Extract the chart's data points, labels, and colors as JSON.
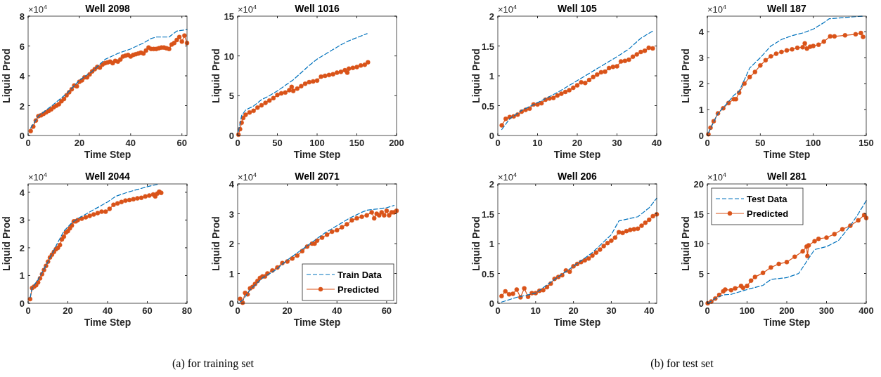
{
  "chart_data": [
    {
      "type": "line",
      "title": "Well 2098",
      "xlabel": "Time Step",
      "ylabel": "Liquid Prod",
      "xlim": [
        0,
        62
      ],
      "ylim": [
        0,
        8
      ],
      "xticks": [
        0,
        20,
        40,
        60
      ],
      "yticks": [
        0,
        2,
        4,
        6,
        8
      ],
      "annotations": [
        "×10$^{4}$"
      ],
      "series": [
        {
          "color": "#0072bd",
          "line_style": "dashed",
          "marker": "none",
          "x": [
            1,
            4,
            10,
            15,
            20,
            25,
            30,
            35,
            40,
            45,
            48,
            50,
            55,
            58,
            62
          ],
          "values": [
            0.5,
            1.3,
            2.1,
            2.8,
            3.7,
            4.3,
            5.1,
            5.5,
            5.8,
            6.2,
            6.5,
            6.6,
            6.6,
            7.0,
            7.1
          ]
        },
        {
          "color": "#d95319",
          "line_style": "solid",
          "marker": "circle",
          "x": [
            1,
            2,
            3,
            4,
            5,
            6,
            7,
            8,
            9,
            10,
            11,
            12,
            13,
            14,
            15,
            16,
            17,
            18,
            19,
            20,
            21,
            22,
            23,
            24,
            25,
            26,
            27,
            28,
            29,
            30,
            31,
            32,
            33,
            34,
            35,
            36,
            37,
            38,
            39,
            40,
            41,
            42,
            43,
            44,
            45,
            46,
            47,
            48,
            49,
            50,
            51,
            52,
            53,
            54,
            55,
            56,
            57,
            58,
            59,
            60,
            61,
            62
          ],
          "values": [
            0.3,
            0.6,
            1.0,
            1.3,
            1.35,
            1.45,
            1.55,
            1.65,
            1.75,
            1.9,
            2.0,
            2.1,
            2.3,
            2.45,
            2.7,
            2.9,
            3.1,
            3.35,
            3.3,
            3.6,
            3.7,
            3.9,
            3.9,
            4.1,
            4.3,
            4.45,
            4.6,
            4.55,
            4.75,
            4.85,
            4.9,
            4.95,
            4.85,
            5.0,
            4.95,
            5.1,
            5.3,
            5.35,
            5.4,
            5.3,
            5.4,
            5.45,
            5.5,
            5.55,
            5.5,
            5.7,
            5.9,
            5.8,
            5.8,
            5.8,
            5.85,
            5.9,
            5.9,
            5.85,
            5.8,
            6.1,
            6.2,
            6.4,
            6.6,
            6.3,
            6.7,
            6.2
          ]
        }
      ]
    },
    {
      "type": "line",
      "title": "Well 1016",
      "xlabel": "Time Step",
      "ylabel": "Liquid Prod",
      "xlim": [
        0,
        200
      ],
      "ylim": [
        0,
        15
      ],
      "xticks": [
        0,
        50,
        100,
        150,
        200
      ],
      "yticks": [
        0,
        5,
        10,
        15
      ],
      "annotations": [
        "×10$^{4}$"
      ],
      "series": [
        {
          "color": "#0072bd",
          "line_style": "dashed",
          "marker": "none",
          "x": [
            1,
            5,
            10,
            20,
            30,
            40,
            50,
            60,
            70,
            80,
            90,
            100,
            110,
            120,
            130,
            140,
            150,
            163
          ],
          "values": [
            0.5,
            2.5,
            3.2,
            3.7,
            4.5,
            5.0,
            5.6,
            6.3,
            7.0,
            7.9,
            8.8,
            9.6,
            10.2,
            10.8,
            11.4,
            11.9,
            12.3,
            12.8
          ]
        },
        {
          "color": "#d95319",
          "line_style": "solid",
          "marker": "circle",
          "x": [
            1,
            3,
            5,
            7,
            10,
            15,
            20,
            25,
            30,
            35,
            40,
            45,
            50,
            55,
            60,
            65,
            68,
            70,
            75,
            80,
            85,
            90,
            95,
            100,
            105,
            110,
            115,
            120,
            125,
            130,
            135,
            138,
            140,
            145,
            150,
            155,
            160,
            164
          ],
          "values": [
            0.1,
            0.8,
            1.6,
            2.2,
            2.6,
            2.9,
            3.1,
            3.5,
            3.8,
            4.1,
            4.4,
            4.7,
            5.1,
            5.3,
            5.4,
            5.7,
            6.1,
            5.6,
            5.9,
            6.2,
            6.5,
            6.7,
            6.8,
            6.9,
            7.4,
            7.5,
            7.6,
            7.7,
            7.9,
            8.0,
            8.2,
            7.9,
            8.4,
            8.5,
            8.6,
            8.8,
            8.9,
            9.2
          ]
        }
      ]
    },
    {
      "type": "line",
      "title": "Well 2044",
      "xlabel": "Time Step",
      "ylabel": "Liquid Prod",
      "xlim": [
        0,
        80
      ],
      "ylim": [
        0,
        4.3
      ],
      "xticks": [
        0,
        20,
        40,
        60,
        80
      ],
      "yticks": [
        0,
        1,
        2,
        3,
        4
      ],
      "annotations": [
        "×10$^{4}$",
        "(a) for training set"
      ],
      "series": [
        {
          "color": "#0072bd",
          "line_style": "dashed",
          "marker": "none",
          "x": [
            1,
            2,
            5,
            10,
            15,
            18,
            22,
            25,
            30,
            35,
            40,
            44,
            50,
            55,
            60,
            66
          ],
          "values": [
            0.2,
            0.55,
            0.85,
            1.5,
            2.2,
            2.6,
            2.9,
            3.05,
            3.25,
            3.45,
            3.65,
            3.85,
            4.0,
            4.1,
            4.2,
            4.3
          ]
        },
        {
          "color": "#d95319",
          "line_style": "solid",
          "marker": "circle",
          "x": [
            1,
            2,
            3,
            4,
            5,
            6,
            7,
            8,
            9,
            10,
            11,
            12,
            13,
            14,
            15,
            16,
            17,
            18,
            19,
            20,
            21,
            22,
            23,
            24,
            25,
            27,
            29,
            31,
            33,
            35,
            37,
            39,
            41,
            43,
            45,
            47,
            49,
            51,
            53,
            55,
            57,
            59,
            61,
            63,
            64,
            65,
            66,
            67
          ],
          "values": [
            0.15,
            0.55,
            0.6,
            0.65,
            0.75,
            0.9,
            1.05,
            1.2,
            1.35,
            1.5,
            1.65,
            1.75,
            1.85,
            1.95,
            2.0,
            2.1,
            2.3,
            2.4,
            2.55,
            2.6,
            2.7,
            2.8,
            2.95,
            2.95,
            3.0,
            3.05,
            3.1,
            3.15,
            3.2,
            3.25,
            3.3,
            3.3,
            3.4,
            3.55,
            3.6,
            3.65,
            3.7,
            3.72,
            3.75,
            3.78,
            3.8,
            3.85,
            3.88,
            3.92,
            3.85,
            3.95,
            4.02,
            3.98
          ]
        }
      ]
    },
    {
      "type": "line",
      "title": "Well 2071",
      "xlabel": "Time Step",
      "ylabel": "Liquid Prod",
      "xlim": [
        0,
        64
      ],
      "ylim": [
        0,
        4
      ],
      "xticks": [
        0,
        20,
        40,
        60
      ],
      "yticks": [
        0,
        1,
        2,
        3,
        4
      ],
      "legend": "bottom right",
      "annotations": [
        "×10$^{4}$"
      ],
      "series": [
        {
          "name": "Train Data",
          "color": "#0072bd",
          "line_style": "dashed",
          "marker": "none",
          "x": [
            1,
            2,
            5,
            10,
            15,
            20,
            25,
            30,
            35,
            40,
            45,
            50,
            52,
            55,
            60,
            63
          ],
          "values": [
            0.05,
            0.1,
            0.45,
            0.85,
            1.1,
            1.45,
            1.75,
            2.05,
            2.35,
            2.6,
            2.85,
            3.05,
            3.12,
            3.15,
            3.2,
            3.28
          ]
        },
        {
          "name": "Predicted",
          "color": "#d95319",
          "line_style": "solid",
          "marker": "circle",
          "x": [
            1,
            2,
            3,
            4,
            5,
            6,
            7,
            8,
            9,
            10,
            11,
            12,
            14,
            16,
            18,
            20,
            22,
            24,
            26,
            28,
            30,
            31,
            32,
            34,
            36,
            38,
            40,
            42,
            44,
            46,
            48,
            50,
            52,
            54,
            55,
            56,
            57,
            58,
            59,
            60,
            61,
            62,
            63,
            64
          ],
          "values": [
            0.15,
            0.02,
            0.35,
            0.3,
            0.5,
            0.55,
            0.65,
            0.75,
            0.85,
            0.9,
            0.9,
            1.0,
            1.1,
            1.2,
            1.35,
            1.4,
            1.5,
            1.6,
            1.75,
            1.9,
            2.0,
            2.0,
            2.1,
            2.2,
            2.3,
            2.4,
            2.45,
            2.55,
            2.65,
            2.78,
            2.85,
            2.9,
            2.95,
            3.05,
            2.85,
            3.0,
            2.95,
            3.05,
            2.95,
            3.1,
            2.95,
            3.05,
            3.05,
            3.1
          ]
        }
      ]
    },
    {
      "type": "line",
      "title": "Well 105",
      "xlabel": "Time Step",
      "ylabel": "Liquid Prod",
      "xlim": [
        0,
        40
      ],
      "ylim": [
        0,
        2
      ],
      "xticks": [
        0,
        10,
        20,
        30,
        40
      ],
      "yticks": [
        0,
        0.5,
        1,
        1.5,
        2
      ],
      "annotations": [
        "×10$^{4}$"
      ],
      "series": [
        {
          "color": "#0072bd",
          "line_style": "dashed",
          "marker": "none",
          "x": [
            1,
            3,
            6,
            10,
            15,
            20,
            25,
            30,
            33,
            36,
            39
          ],
          "values": [
            0.1,
            0.28,
            0.42,
            0.55,
            0.72,
            0.92,
            1.12,
            1.32,
            1.45,
            1.63,
            1.75
          ]
        },
        {
          "color": "#d95319",
          "line_style": "solid",
          "marker": "circle",
          "x": [
            1,
            2,
            3,
            4,
            5,
            6,
            7,
            8,
            9,
            10,
            11,
            12,
            13,
            14,
            15,
            16,
            17,
            18,
            19,
            20,
            21,
            22,
            23,
            24,
            25,
            26,
            27,
            28,
            29,
            30,
            31,
            32,
            33,
            34,
            35,
            36,
            37,
            38,
            39
          ],
          "values": [
            0.17,
            0.28,
            0.31,
            0.32,
            0.35,
            0.4,
            0.43,
            0.45,
            0.52,
            0.52,
            0.54,
            0.6,
            0.62,
            0.63,
            0.67,
            0.7,
            0.73,
            0.76,
            0.8,
            0.84,
            0.89,
            0.88,
            0.93,
            0.98,
            1.02,
            1.06,
            1.07,
            1.13,
            1.15,
            1.16,
            1.24,
            1.25,
            1.27,
            1.32,
            1.36,
            1.4,
            1.42,
            1.47,
            1.46
          ]
        }
      ]
    },
    {
      "type": "line",
      "title": "Well 187",
      "xlabel": "Time Step",
      "ylabel": "Liquid Prod",
      "xlim": [
        0,
        150
      ],
      "ylim": [
        0,
        4.6
      ],
      "xticks": [
        0,
        50,
        100,
        150
      ],
      "yticks": [
        0,
        1,
        2,
        3,
        4
      ],
      "annotations": [
        "×10$^{4}$"
      ],
      "series": [
        {
          "color": "#0072bd",
          "line_style": "dashed",
          "marker": "none",
          "x": [
            1,
            10,
            20,
            25,
            30,
            40,
            50,
            60,
            70,
            80,
            90,
            100,
            110,
            115,
            130,
            147
          ],
          "values": [
            0.1,
            0.85,
            1.3,
            1.55,
            1.7,
            2.6,
            3.0,
            3.45,
            3.7,
            3.85,
            3.95,
            4.1,
            4.35,
            4.5,
            4.55,
            4.6
          ]
        },
        {
          "color": "#d95319",
          "line_style": "solid",
          "marker": "circle",
          "x": [
            1,
            3,
            6,
            10,
            15,
            20,
            25,
            27,
            30,
            35,
            40,
            45,
            50,
            55,
            60,
            65,
            70,
            75,
            80,
            85,
            90,
            92,
            94,
            97,
            100,
            105,
            110,
            116,
            120,
            130,
            140,
            145,
            147
          ],
          "values": [
            0.05,
            0.3,
            0.55,
            0.85,
            1.05,
            1.25,
            1.4,
            1.4,
            1.65,
            2.0,
            2.25,
            2.45,
            2.7,
            2.9,
            3.05,
            3.15,
            3.22,
            3.28,
            3.32,
            3.38,
            3.4,
            3.55,
            3.35,
            3.42,
            3.45,
            3.5,
            3.62,
            3.82,
            3.82,
            3.86,
            3.9,
            3.95,
            3.8
          ]
        }
      ]
    },
    {
      "type": "line",
      "title": "Well 206",
      "xlabel": "Time Step",
      "ylabel": "Liquid Prod",
      "xlim": [
        0,
        42
      ],
      "ylim": [
        0,
        2
      ],
      "xticks": [
        0,
        10,
        20,
        30,
        40
      ],
      "yticks": [
        0,
        0.5,
        1,
        1.5,
        2
      ],
      "annotations": [
        "×10$^{4}$",
        "(b) for test set"
      ],
      "series": [
        {
          "color": "#0072bd",
          "line_style": "dashed",
          "marker": "none",
          "x": [
            1,
            5,
            10,
            15,
            20,
            25,
            30,
            32,
            37,
            40,
            42
          ],
          "values": [
            0.02,
            0.1,
            0.17,
            0.4,
            0.62,
            0.85,
            1.15,
            1.38,
            1.45,
            1.6,
            1.76
          ]
        },
        {
          "color": "#d95319",
          "line_style": "solid",
          "marker": "circle",
          "x": [
            1,
            2,
            3,
            4,
            5,
            6,
            7,
            8,
            9,
            10,
            11,
            12,
            13,
            14,
            15,
            16,
            17,
            18,
            19,
            20,
            21,
            22,
            23,
            24,
            25,
            26,
            27,
            28,
            29,
            30,
            31,
            32,
            33,
            34,
            35,
            36,
            37,
            38,
            39,
            40,
            41,
            42
          ],
          "values": [
            0.12,
            0.2,
            0.15,
            0.16,
            0.23,
            0.1,
            0.25,
            0.11,
            0.17,
            0.17,
            0.21,
            0.22,
            0.27,
            0.33,
            0.41,
            0.44,
            0.47,
            0.55,
            0.53,
            0.62,
            0.66,
            0.69,
            0.72,
            0.75,
            0.8,
            0.85,
            0.9,
            0.96,
            1.01,
            1.05,
            1.1,
            1.19,
            1.18,
            1.21,
            1.23,
            1.24,
            1.25,
            1.3,
            1.35,
            1.4,
            1.46,
            1.49
          ]
        }
      ]
    },
    {
      "type": "line",
      "title": "Well 281",
      "xlabel": "Time Step",
      "ylabel": "Liquid Prod",
      "xlim": [
        0,
        400
      ],
      "ylim": [
        0,
        20
      ],
      "xticks": [
        0,
        100,
        200,
        300,
        400
      ],
      "yticks": [
        0,
        5,
        10,
        15,
        20
      ],
      "legend": "top left",
      "annotations": [
        "×10$^{4}$"
      ],
      "series": [
        {
          "name": "Test Data",
          "color": "#0072bd",
          "line_style": "dashed",
          "marker": "none",
          "x": [
            1,
            20,
            40,
            60,
            100,
            140,
            160,
            200,
            230,
            250,
            270,
            300,
            330,
            360,
            380,
            400
          ],
          "values": [
            0,
            0.8,
            1.4,
            1.5,
            2.3,
            3.0,
            4.0,
            4.3,
            5.0,
            7.0,
            9.0,
            9.5,
            10.5,
            13.0,
            15.0,
            17.2
          ]
        },
        {
          "name": "Predicted",
          "color": "#d95319",
          "line_style": "solid",
          "marker": "circle",
          "x": [
            1,
            10,
            20,
            30,
            40,
            45,
            60,
            70,
            85,
            90,
            100,
            110,
            120,
            140,
            160,
            180,
            200,
            220,
            240,
            250,
            252,
            255,
            270,
            280,
            300,
            320,
            340,
            360,
            380,
            395,
            400
          ],
          "values": [
            0,
            0.3,
            0.8,
            1.4,
            2.0,
            2.3,
            2.2,
            2.5,
            2.9,
            2.6,
            2.9,
            3.8,
            4.4,
            5.1,
            6.0,
            6.6,
            6.9,
            7.8,
            8.7,
            9.5,
            7.9,
            9.7,
            10.4,
            10.8,
            11.0,
            11.6,
            12.4,
            13.0,
            13.9,
            14.8,
            14.3
          ]
        }
      ]
    }
  ]
}
